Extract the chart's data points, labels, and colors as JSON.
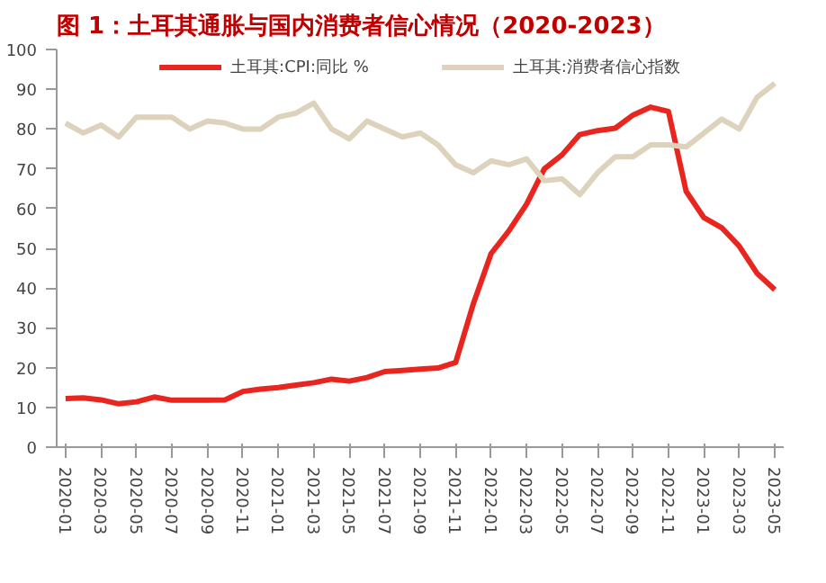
{
  "chart_data": {
    "type": "line",
    "title": "图 1：土耳其通胀与国内消费者信心情况（2020-2023）",
    "categories": [
      "2020-01",
      null,
      "2020-03",
      null,
      "2020-05",
      null,
      "2020-07",
      null,
      "2020-09",
      null,
      "2020-11",
      null,
      "2021-01",
      null,
      "2021-03",
      null,
      "2021-05",
      null,
      "2021-07",
      null,
      "2021-09",
      null,
      "2021-11",
      null,
      "2022-01",
      null,
      "2022-03",
      null,
      "2022-05",
      null,
      "2022-07",
      null,
      "2022-09",
      null,
      "2022-11",
      null,
      "2023-01",
      null,
      "2023-03",
      null,
      "2023-05"
    ],
    "series": [
      {
        "name": "土耳其:CPI:同比 %",
        "color": "#e8261f",
        "values": [
          12.2,
          12.4,
          11.9,
          10.9,
          11.4,
          12.6,
          11.8,
          11.8,
          11.8,
          11.9,
          14.0,
          14.6,
          15.0,
          15.6,
          16.2,
          17.1,
          16.6,
          17.5,
          19.0,
          19.3,
          19.6,
          19.9,
          21.3,
          36.1,
          48.7,
          54.4,
          61.1,
          70.0,
          73.5,
          78.6,
          79.6,
          80.2,
          83.5,
          85.5,
          84.4,
          64.3,
          57.7,
          55.2,
          50.5,
          43.7,
          39.6
        ]
      },
      {
        "name": "土耳其:消费者信心指数",
        "color": "#ddd3bd",
        "values": [
          81.5,
          79,
          81,
          78,
          83,
          83,
          83,
          80,
          82,
          81.5,
          80,
          80,
          83,
          84,
          86.5,
          80,
          77.5,
          82,
          80,
          78,
          79,
          76,
          71,
          69,
          72,
          71,
          72.5,
          67,
          67.5,
          63.5,
          69,
          73,
          73,
          76,
          76,
          75.5,
          79,
          82.5,
          80,
          88,
          91.5
        ]
      }
    ],
    "ylim": [
      0,
      100
    ],
    "yticks": [
      0,
      10,
      20,
      30,
      40,
      50,
      60,
      70,
      80,
      90,
      100
    ],
    "grid": false,
    "legend": "top",
    "line_style": "solid",
    "marker": "none"
  }
}
